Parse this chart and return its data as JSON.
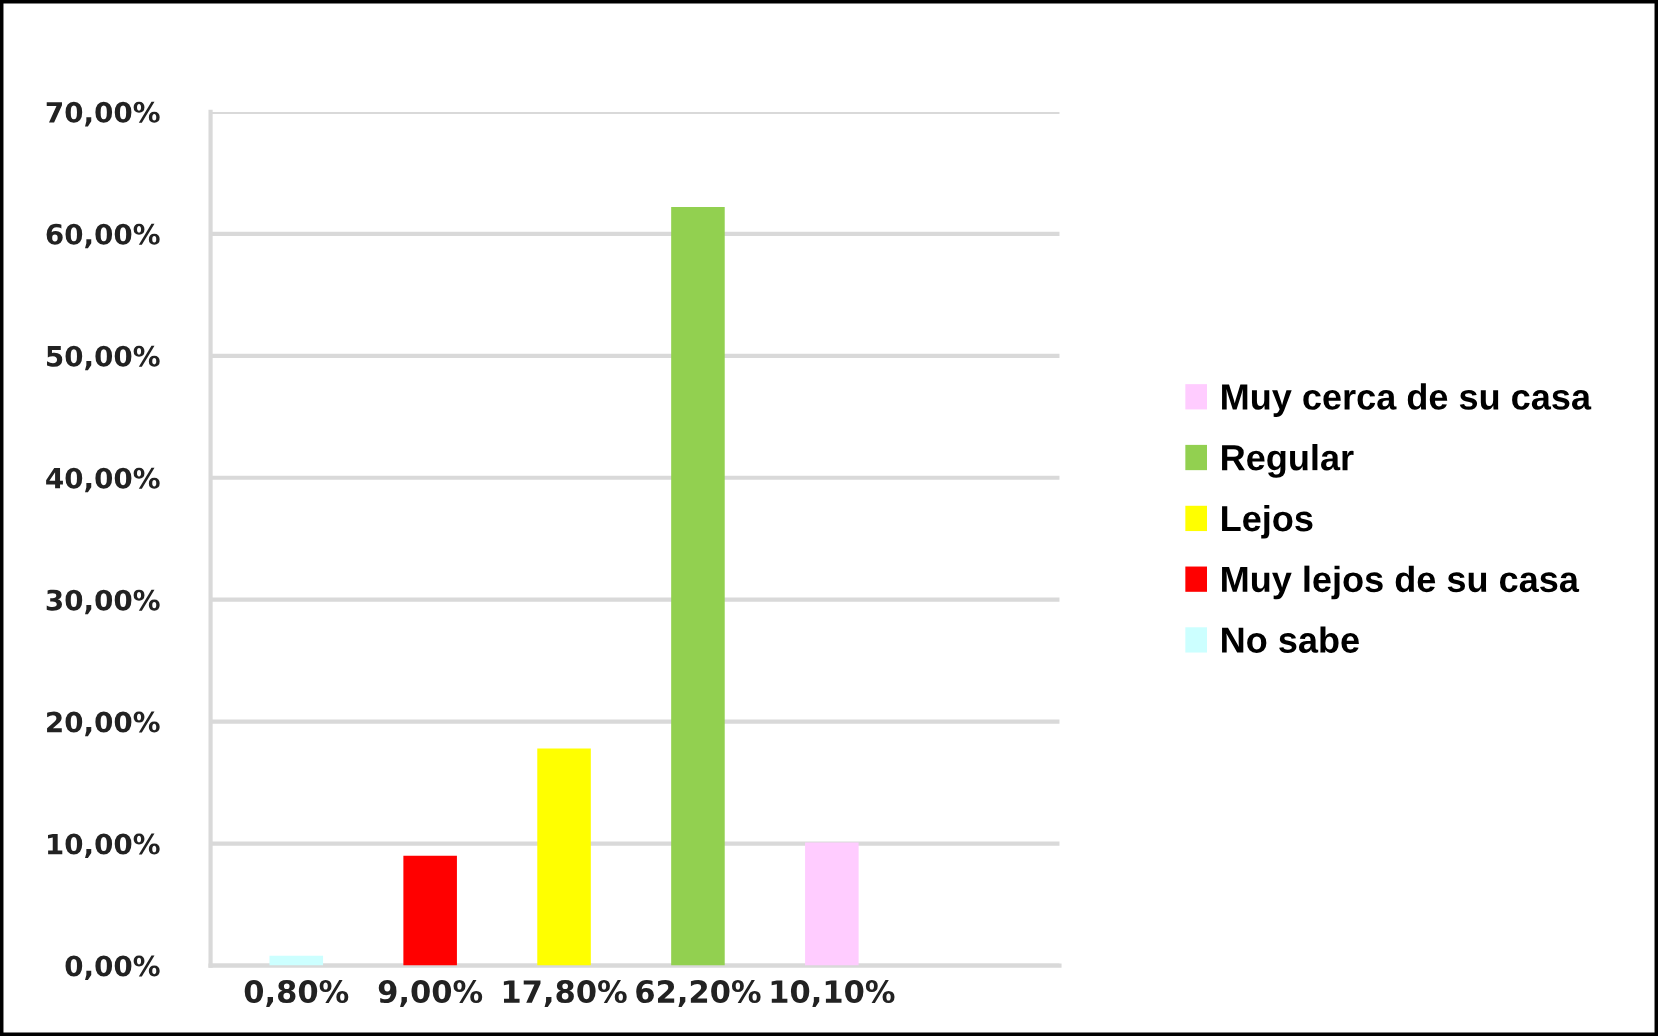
{
  "chart_data": {
    "type": "bar",
    "stacked": true,
    "categories": [
      null,
      null,
      null,
      null,
      null
    ],
    "series": [
      {
        "name": "Muy cerca de su casa",
        "color": "#ffccff",
        "values": [
          null,
          null,
          null,
          null,
          10.1
        ],
        "value_labels": [
          null,
          null,
          null,
          null,
          "10,10%"
        ]
      },
      {
        "name": "Regular",
        "color": "#92d050",
        "values": [
          null,
          null,
          null,
          62.2,
          null
        ],
        "value_labels": [
          null,
          null,
          null,
          "62,20%",
          null
        ]
      },
      {
        "name": "Lejos",
        "color": "#ffff00",
        "values": [
          null,
          null,
          17.8,
          null,
          null
        ],
        "value_labels": [
          null,
          null,
          "17,80%",
          null,
          null
        ]
      },
      {
        "name": "Muy lejos de su casa",
        "color": "#ff0000",
        "values": [
          null,
          9.0,
          null,
          null,
          null
        ],
        "value_labels": [
          null,
          "9,00%",
          null,
          null,
          null
        ]
      },
      {
        "name": "No sabe",
        "color": "#ccffff",
        "values": [
          0.8,
          null,
          null,
          null,
          null
        ],
        "value_labels": [
          "0,80%",
          null,
          null,
          null,
          null
        ]
      }
    ],
    "ylim": [
      0,
      70
    ],
    "yticks": [
      {
        "value": 0,
        "label": "0,00%"
      },
      {
        "value": 10,
        "label": "10,00%"
      },
      {
        "value": 20,
        "label": "20,00%"
      },
      {
        "value": 30,
        "label": "30,00%"
      },
      {
        "value": 40,
        "label": "40,00%"
      },
      {
        "value": 50,
        "label": "50,00%"
      },
      {
        "value": 60,
        "label": "60,00%"
      },
      {
        "value": 70,
        "label": "70,00%"
      }
    ],
    "grid": "y",
    "legend": "right"
  }
}
